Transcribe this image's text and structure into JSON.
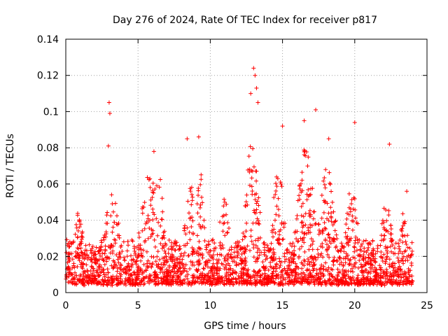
{
  "chart_data": {
    "type": "scatter",
    "title": "Day 276 of 2024, Rate Of TEC Index for receiver p817",
    "xlabel": "GPS time / hours",
    "ylabel": "ROTI / TECUs",
    "xlim": [
      0,
      25
    ],
    "ylim": [
      0,
      0.14
    ],
    "xticks": [
      0,
      5,
      10,
      15,
      20,
      25
    ],
    "yticks": [
      0,
      0.02,
      0.04,
      0.06,
      0.08,
      0.1,
      0.12,
      0.14
    ],
    "xtick_labels": [
      "0",
      "5",
      "10",
      "15",
      "20",
      "25"
    ],
    "ytick_labels": [
      "0",
      "0.02",
      "0.04",
      "0.06",
      "0.08",
      "0.1",
      "0.12",
      "0.14"
    ],
    "grid": true,
    "marker": "+",
    "series": [
      {
        "name": "ROTI",
        "color": "#ff0000",
        "x_range": [
          0,
          24
        ],
        "baseline": 0.004,
        "notable_points": [
          {
            "x": 3.0,
            "y": 0.105
          },
          {
            "x": 3.05,
            "y": 0.099
          },
          {
            "x": 2.95,
            "y": 0.081
          },
          {
            "x": 13.0,
            "y": 0.124
          },
          {
            "x": 13.1,
            "y": 0.12
          },
          {
            "x": 13.2,
            "y": 0.113
          },
          {
            "x": 12.8,
            "y": 0.11
          },
          {
            "x": 13.3,
            "y": 0.105
          },
          {
            "x": 17.3,
            "y": 0.101
          },
          {
            "x": 16.5,
            "y": 0.095
          },
          {
            "x": 20.0,
            "y": 0.094
          },
          {
            "x": 15.0,
            "y": 0.092
          },
          {
            "x": 22.4,
            "y": 0.082
          },
          {
            "x": 9.2,
            "y": 0.086
          },
          {
            "x": 8.4,
            "y": 0.085
          },
          {
            "x": 18.2,
            "y": 0.085
          },
          {
            "x": 6.1,
            "y": 0.078
          },
          {
            "x": 23.6,
            "y": 0.056
          }
        ]
      }
    ]
  }
}
